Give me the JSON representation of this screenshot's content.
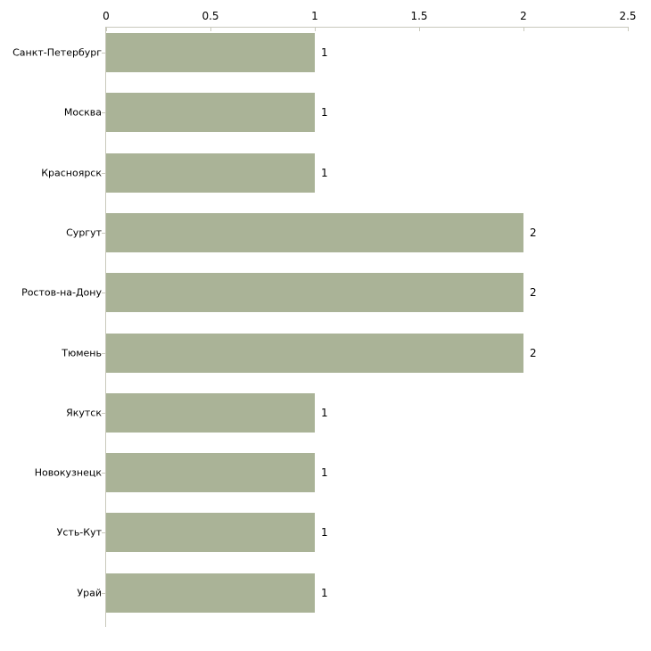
{
  "chart_data": {
    "type": "bar",
    "orientation": "horizontal",
    "title": "",
    "xlabel": "",
    "ylabel": "",
    "categories": [
      "Санкт-Петербург",
      "Москва",
      "Красноярск",
      "Сургут",
      "Ростов-на-Дону",
      "Тюмень",
      "Якутск",
      "Новокузнецк",
      "Усть-Кут",
      "Урай"
    ],
    "values": [
      1,
      1,
      1,
      2,
      2,
      2,
      1,
      1,
      1,
      1
    ],
    "value_labels": [
      "1",
      "1",
      "1",
      "2",
      "2",
      "2",
      "1",
      "1",
      "1",
      "1"
    ],
    "xlim": [
      0,
      2.5
    ],
    "x_ticks": [
      0,
      0.5,
      1,
      1.5,
      2,
      2.5
    ],
    "x_tick_labels": [
      "0",
      "0.5",
      "1",
      "1.5",
      "2",
      "2.5"
    ],
    "axis_position": "top",
    "grid": false,
    "legend": null,
    "colors": {
      "bar_fill": "#aab397",
      "axis_line": "#c9c9bc",
      "text": "#000000",
      "background": "#ffffff"
    }
  }
}
